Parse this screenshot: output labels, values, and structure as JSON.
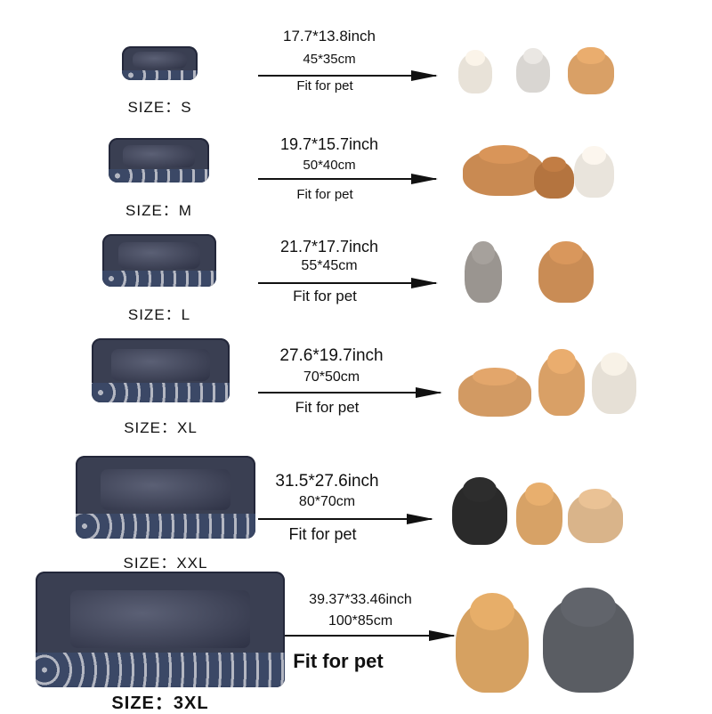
{
  "rows": [
    {
      "size_label": "SIZE：S",
      "inch": "17.7*13.8inch",
      "cm": "45*35cm",
      "fit": "Fit for pet",
      "pets": [
        {
          "icon": "kitten-icon",
          "color": "#e8e2d8"
        },
        {
          "icon": "kitten-icon",
          "color": "#d9d6d2"
        },
        {
          "icon": "puppy-icon",
          "color": "#d9a066"
        }
      ]
    },
    {
      "size_label": "SIZE：M",
      "inch": "19.7*15.7inch",
      "cm": "50*40cm",
      "fit": "Fit for pet",
      "pets": [
        {
          "icon": "dog-icon",
          "color": "#c98a52"
        },
        {
          "icon": "puppy-icon",
          "color": "#b4743f"
        },
        {
          "icon": "pug-icon",
          "color": "#e9e4dc"
        }
      ]
    },
    {
      "size_label": "SIZE：L",
      "inch": "21.7*17.7inch",
      "cm": "55*45cm",
      "fit": "Fit for pet",
      "pets": [
        {
          "icon": "cat-icon",
          "color": "#9a9590"
        },
        {
          "icon": "chihuahua-icon",
          "color": "#c98c55"
        }
      ]
    },
    {
      "size_label": "SIZE：XL",
      "inch": "27.6*19.7inch",
      "cm": "70*50cm",
      "fit": "Fit for pet",
      "pets": [
        {
          "icon": "cat-icon",
          "color": "#d29a63"
        },
        {
          "icon": "corgi-icon",
          "color": "#d9a066"
        },
        {
          "icon": "dog-icon",
          "color": "#e6e0d6"
        }
      ]
    },
    {
      "size_label": "SIZE：XXL",
      "inch": "31.5*27.6inch",
      "cm": "80*70cm",
      "fit": "Fit for pet",
      "pets": [
        {
          "icon": "border-collie-icon",
          "color": "#2a2a2a"
        },
        {
          "icon": "corgi-icon",
          "color": "#d7a266"
        },
        {
          "icon": "bulldog-icon",
          "color": "#d9b48a"
        }
      ]
    },
    {
      "size_label": "SIZE：3XL",
      "inch": "39.37*33.46inch",
      "cm": "100*85cm",
      "fit": "Fit for pet",
      "pets": [
        {
          "icon": "golden-retriever-icon",
          "color": "#d6a161"
        },
        {
          "icon": "husky-icon",
          "color": "#5a5d63"
        }
      ]
    }
  ]
}
